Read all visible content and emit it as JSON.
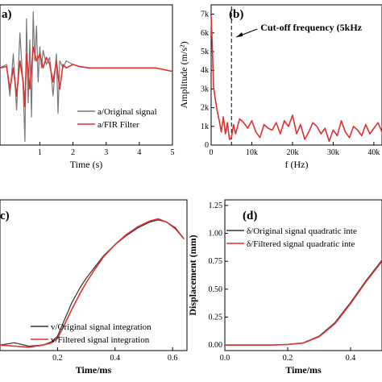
{
  "panels_labels": {
    "a": "a)",
    "b": "(b)",
    "c": "c)",
    "d": "(d)"
  },
  "colors": {
    "original": "#777777",
    "filtered": "#e03030",
    "original_dark": "#333333"
  },
  "chart_data": [
    {
      "id": "a",
      "type": "line",
      "panel_label": "a)",
      "xlabel": "Time (s)",
      "ylabel": "",
      "xlim": [
        -0.2,
        5
      ],
      "ylim": [
        -1.0,
        1.0
      ],
      "xticks": [
        "1",
        "2",
        "3",
        "4",
        "5"
      ],
      "xtick_values": [
        1,
        2,
        3,
        4,
        5
      ],
      "series": [
        {
          "name": "a/Original signal",
          "x": [
            -0.2,
            0,
            0.1,
            0.2,
            0.3,
            0.4,
            0.5,
            0.55,
            0.6,
            0.65,
            0.7,
            0.75,
            0.8,
            0.85,
            0.9,
            0.95,
            1.0,
            1.05,
            1.1,
            1.2,
            1.3,
            1.4,
            1.5,
            1.55,
            1.6,
            1.7,
            1.8,
            2.0,
            2.2,
            2.5,
            3.0,
            3.5,
            4.0,
            4.5,
            5.0
          ],
          "y": [
            0.1,
            0.15,
            -0.3,
            0.3,
            -0.5,
            0.6,
            -0.2,
            -0.95,
            0.8,
            -0.4,
            0.5,
            -0.6,
            0.9,
            0.2,
            0.7,
            -0.1,
            0.4,
            0.1,
            0.35,
            0.15,
            0.25,
            -0.3,
            0.3,
            -0.55,
            0.2,
            0.1,
            0.2,
            0.15,
            0.12,
            0.1,
            0.1,
            0.1,
            0.1,
            0.1,
            0.05
          ]
        },
        {
          "name": "a/FIR Filter",
          "x": [
            -0.2,
            0,
            0.1,
            0.2,
            0.3,
            0.4,
            0.5,
            0.55,
            0.6,
            0.7,
            0.8,
            0.9,
            1.0,
            1.1,
            1.2,
            1.3,
            1.4,
            1.5,
            1.6,
            1.7,
            1.8,
            2.0,
            2.2,
            2.5,
            3.0,
            3.5,
            4.0,
            4.5,
            5.0
          ],
          "y": [
            0.1,
            0.12,
            -0.2,
            0.1,
            -0.3,
            0.2,
            -0.1,
            -0.45,
            0.3,
            -0.2,
            0.4,
            0.2,
            0.3,
            0.1,
            0.25,
            0.15,
            -0.1,
            0.2,
            -0.2,
            0.15,
            0.1,
            0.15,
            0.12,
            0.1,
            0.1,
            0.1,
            0.1,
            0.1,
            0.05
          ]
        }
      ],
      "legend": "lower-right"
    },
    {
      "id": "b",
      "type": "line",
      "panel_label": "(b)",
      "xlabel": "f (Hz)",
      "ylabel": "Amplitude (m/s²)",
      "xlim": [
        0,
        42000
      ],
      "ylim": [
        0,
        7500
      ],
      "xticks": [
        "0",
        "10k",
        "20k",
        "30k",
        "40k"
      ],
      "xtick_values": [
        0,
        10000,
        20000,
        30000,
        40000
      ],
      "yticks": [
        "0",
        "1k",
        "2k",
        "3k",
        "4k",
        "5k",
        "6k",
        "7k"
      ],
      "ytick_values": [
        0,
        1000,
        2000,
        3000,
        4000,
        5000,
        6000,
        7000
      ],
      "annotation": "Cut-off frequency (5kHz",
      "cutoff_x": 5000,
      "series": [
        {
          "name": "",
          "x": [
            0,
            300,
            600,
            1000,
            1500,
            2000,
            2500,
            3000,
            3500,
            4000,
            4500,
            5000,
            5500,
            6000,
            7000,
            8000,
            9000,
            10000,
            11000,
            12000,
            13000,
            14000,
            15000,
            16000,
            17000,
            18000,
            19000,
            20000,
            21000,
            22000,
            23000,
            24000,
            25000,
            26000,
            27000,
            28000,
            29000,
            30000,
            31000,
            32000,
            33000,
            34000,
            35000,
            36000,
            37000,
            38000,
            39000,
            40000,
            41000,
            42000
          ],
          "y": [
            6900,
            5200,
            3100,
            2500,
            1800,
            1300,
            700,
            1500,
            600,
            1200,
            300,
            400,
            1100,
            600,
            1400,
            1200,
            900,
            1300,
            700,
            400,
            1100,
            900,
            800,
            1200,
            600,
            1300,
            1000,
            1600,
            600,
            1100,
            300,
            700,
            1200,
            1000,
            600,
            900,
            200,
            800,
            500,
            1300,
            700,
            400,
            1000,
            800,
            500,
            1100,
            600,
            900,
            1200,
            700
          ]
        }
      ]
    },
    {
      "id": "c",
      "type": "line",
      "panel_label": "c)",
      "xlabel": "Time/ms",
      "ylabel": "",
      "xlim": [
        0,
        0.65
      ],
      "ylim": [
        -0.05,
        1.3
      ],
      "xticks": [
        "0.2",
        "0.4",
        "0.6"
      ],
      "xtick_values": [
        0.2,
        0.4,
        0.6
      ],
      "series": [
        {
          "name": "v/Original signal integration",
          "x": [
            0,
            0.05,
            0.1,
            0.15,
            0.18,
            0.2,
            0.22,
            0.25,
            0.28,
            0.3,
            0.33,
            0.36,
            0.4,
            0.44,
            0.48,
            0.52,
            0.55,
            0.58,
            0.61,
            0.64
          ],
          "y": [
            0,
            0.02,
            -0.01,
            0.0,
            0.03,
            0.08,
            0.2,
            0.38,
            0.52,
            0.6,
            0.7,
            0.8,
            0.9,
            0.98,
            1.05,
            1.1,
            1.12,
            1.1,
            1.05,
            0.95
          ]
        },
        {
          "name": "v/Filtered signal integration",
          "x": [
            0,
            0.05,
            0.1,
            0.15,
            0.18,
            0.2,
            0.22,
            0.25,
            0.28,
            0.3,
            0.33,
            0.36,
            0.4,
            0.44,
            0.48,
            0.52,
            0.55,
            0.58,
            0.61,
            0.64
          ],
          "y": [
            0,
            -0.01,
            -0.02,
            0.0,
            0.02,
            0.06,
            0.16,
            0.32,
            0.47,
            0.56,
            0.68,
            0.79,
            0.9,
            0.99,
            1.06,
            1.11,
            1.13,
            1.1,
            1.04,
            0.95
          ]
        }
      ],
      "legend": "lower-right"
    },
    {
      "id": "d",
      "type": "line",
      "panel_label": "(d)",
      "xlabel": "Time/ms",
      "ylabel": "Displacement (mm)",
      "xlim": [
        0,
        0.5
      ],
      "ylim": [
        -0.05,
        1.3
      ],
      "xticks": [
        "0.0",
        "0.2",
        "0.4"
      ],
      "xtick_values": [
        0,
        0.2,
        0.4
      ],
      "yticks": [
        "0.00",
        "0.25",
        "0.50",
        "0.75",
        "1.00",
        "1.25"
      ],
      "ytick_values": [
        0,
        0.25,
        0.5,
        0.75,
        1.0,
        1.25
      ],
      "series": [
        {
          "name": "δ/Original signal quadratic inte",
          "x": [
            0,
            0.05,
            0.1,
            0.15,
            0.2,
            0.25,
            0.3,
            0.35,
            0.4,
            0.45,
            0.5
          ],
          "y": [
            0,
            0,
            0,
            0,
            0.005,
            0.02,
            0.08,
            0.2,
            0.38,
            0.58,
            0.76
          ]
        },
        {
          "name": "δ/Filtered signal quadratic inte",
          "x": [
            0,
            0.05,
            0.1,
            0.15,
            0.2,
            0.25,
            0.3,
            0.35,
            0.4,
            0.45,
            0.5
          ],
          "y": [
            0,
            0,
            0,
            0,
            0.004,
            0.018,
            0.075,
            0.19,
            0.37,
            0.57,
            0.75
          ]
        }
      ],
      "legend": "top-right"
    }
  ]
}
